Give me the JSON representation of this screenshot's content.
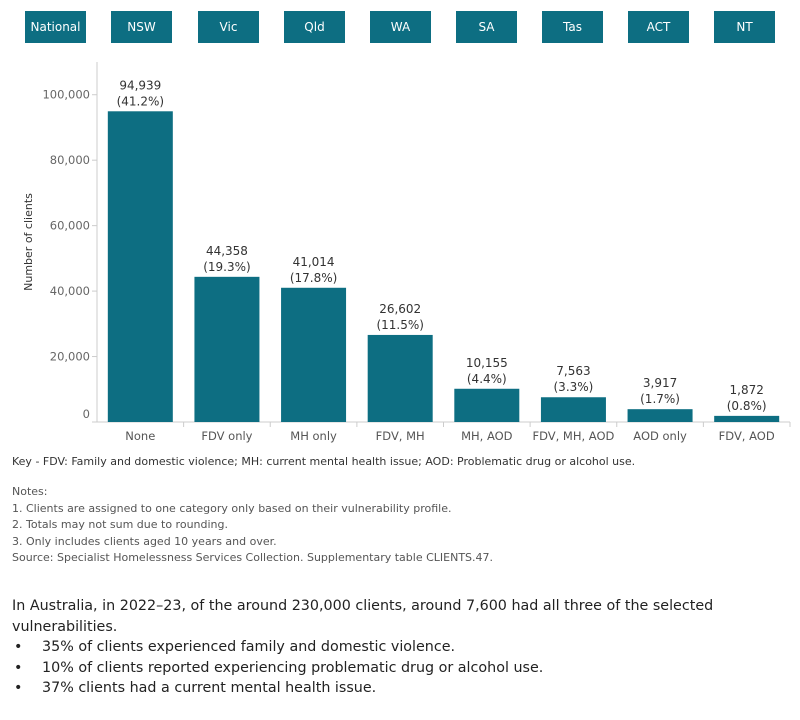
{
  "tabs": [
    "National",
    "NSW",
    "Vic",
    "Qld",
    "WA",
    "SA",
    "Tas",
    "ACT",
    "NT"
  ],
  "colors": {
    "tab_bg": "#0d6e82",
    "bar": "#0d6e82",
    "axis": "#cccccc",
    "text": "#333333"
  },
  "chart_data": {
    "type": "bar",
    "categories": [
      "None",
      "FDV only",
      "MH only",
      "FDV, MH",
      "MH, AOD",
      "FDV, MH, AOD",
      "AOD only",
      "FDV, AOD"
    ],
    "values": [
      94939,
      44358,
      41014,
      26602,
      10155,
      7563,
      3917,
      1872
    ],
    "value_labels": [
      "94,939",
      "44,358",
      "41,014",
      "26,602",
      "10,155",
      "7,563",
      "3,917",
      "1,872"
    ],
    "percent_labels": [
      "(41.2%)",
      "(19.3%)",
      "(17.8%)",
      "(11.5%)",
      "(4.4%)",
      "(3.3%)",
      "(1.7%)",
      "(0.8%)"
    ],
    "title": "",
    "xlabel": "",
    "ylabel": "Number of clients",
    "ylim": [
      0,
      110000
    ],
    "yticks": [
      0,
      20000,
      40000,
      60000,
      80000,
      100000
    ],
    "ytick_labels": [
      "0",
      "20,000",
      "40,000",
      "60,000",
      "80,000",
      "100,000"
    ],
    "grid": false,
    "legend": "none"
  },
  "key": "Key - FDV: Family and domestic violence; MH: current mental health issue; AOD: Problematic drug or alcohol use.",
  "notes": {
    "heading": "Notes:",
    "items": [
      "1. Clients are assigned to one category only based on their vulnerability profile.",
      "2. Totals may not sum due to rounding.",
      "3. Only includes clients aged 10 years and over."
    ],
    "source": "Source: Specialist Homelessness Services Collection. Supplementary table CLIENTS.47."
  },
  "summary": {
    "intro": "In Australia, in 2022–23, of the around 230,000 clients, around 7,600 had all three of the selected vulnerabilities.",
    "bullet_char": "•",
    "bullets": [
      "35% of clients experienced family and domestic violence.",
      "10% of clients reported experiencing problematic drug or alcohol use.",
      "37% clients had a current mental health issue."
    ]
  }
}
